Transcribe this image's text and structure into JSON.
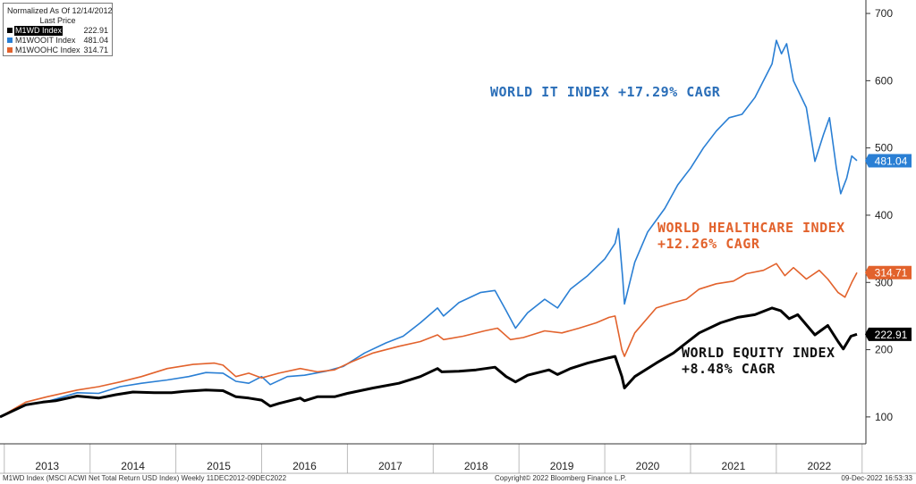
{
  "chart_data": {
    "type": "line",
    "x_range": [
      2012.95,
      2022.94
    ],
    "ylim": [
      60,
      720
    ],
    "y_ticks": [
      100,
      200,
      300,
      400,
      500,
      600,
      700
    ],
    "x_categories": [
      "2013",
      "2014",
      "2015",
      "2016",
      "2017",
      "2018",
      "2019",
      "2020",
      "2021",
      "2022"
    ],
    "legend": {
      "title": "Normalized As Of 12/14/2012",
      "subtitle": "Last Price",
      "placement": "top-left"
    },
    "series": [
      {
        "name": "M1WD Index",
        "last_value": "222.91",
        "color": "#000000",
        "points": [
          [
            2012.95,
            100
          ],
          [
            2013.25,
            118
          ],
          [
            2013.45,
            122
          ],
          [
            2013.6,
            124
          ],
          [
            2013.85,
            131
          ],
          [
            2014.1,
            128
          ],
          [
            2014.3,
            133
          ],
          [
            2014.5,
            137
          ],
          [
            2014.75,
            136
          ],
          [
            2014.95,
            136
          ],
          [
            2015.1,
            138
          ],
          [
            2015.35,
            140
          ],
          [
            2015.55,
            139
          ],
          [
            2015.7,
            130
          ],
          [
            2015.85,
            128
          ],
          [
            2016.0,
            125
          ],
          [
            2016.1,
            116
          ],
          [
            2016.2,
            120
          ],
          [
            2016.45,
            128
          ],
          [
            2016.5,
            124
          ],
          [
            2016.65,
            130
          ],
          [
            2016.85,
            130
          ],
          [
            2017.0,
            135
          ],
          [
            2017.3,
            143
          ],
          [
            2017.6,
            150
          ],
          [
            2017.85,
            160
          ],
          [
            2018.05,
            172
          ],
          [
            2018.1,
            167
          ],
          [
            2018.3,
            168
          ],
          [
            2018.5,
            170
          ],
          [
            2018.72,
            174
          ],
          [
            2018.85,
            160
          ],
          [
            2018.96,
            152
          ],
          [
            2019.1,
            162
          ],
          [
            2019.35,
            170
          ],
          [
            2019.45,
            163
          ],
          [
            2019.6,
            172
          ],
          [
            2019.8,
            180
          ],
          [
            2020.05,
            188
          ],
          [
            2020.12,
            190
          ],
          [
            2020.2,
            160
          ],
          [
            2020.23,
            143
          ],
          [
            2020.35,
            160
          ],
          [
            2020.6,
            180
          ],
          [
            2020.8,
            195
          ],
          [
            2020.95,
            210
          ],
          [
            2021.1,
            225
          ],
          [
            2021.35,
            240
          ],
          [
            2021.55,
            248
          ],
          [
            2021.75,
            252
          ],
          [
            2021.95,
            262
          ],
          [
            2022.05,
            258
          ],
          [
            2022.15,
            246
          ],
          [
            2022.25,
            252
          ],
          [
            2022.45,
            222
          ],
          [
            2022.6,
            236
          ],
          [
            2022.72,
            212
          ],
          [
            2022.78,
            201
          ],
          [
            2022.87,
            220
          ],
          [
            2022.94,
            222.91
          ]
        ]
      },
      {
        "name": "M1WOOIT Index",
        "last_value": "481.04",
        "color": "#2a7fd4",
        "points": [
          [
            2012.95,
            100
          ],
          [
            2013.25,
            117
          ],
          [
            2013.5,
            123
          ],
          [
            2013.85,
            136
          ],
          [
            2014.1,
            135
          ],
          [
            2014.35,
            145
          ],
          [
            2014.6,
            150
          ],
          [
            2014.9,
            155
          ],
          [
            2015.15,
            160
          ],
          [
            2015.35,
            166
          ],
          [
            2015.55,
            165
          ],
          [
            2015.7,
            153
          ],
          [
            2015.85,
            150
          ],
          [
            2016.0,
            160
          ],
          [
            2016.1,
            148
          ],
          [
            2016.3,
            160
          ],
          [
            2016.5,
            162
          ],
          [
            2016.75,
            168
          ],
          [
            2016.95,
            175
          ],
          [
            2017.2,
            195
          ],
          [
            2017.45,
            210
          ],
          [
            2017.65,
            220
          ],
          [
            2017.85,
            240
          ],
          [
            2018.05,
            262
          ],
          [
            2018.12,
            250
          ],
          [
            2018.3,
            270
          ],
          [
            2018.55,
            285
          ],
          [
            2018.72,
            288
          ],
          [
            2018.85,
            258
          ],
          [
            2018.96,
            232
          ],
          [
            2019.1,
            255
          ],
          [
            2019.3,
            275
          ],
          [
            2019.45,
            262
          ],
          [
            2019.6,
            290
          ],
          [
            2019.8,
            310
          ],
          [
            2020.0,
            335
          ],
          [
            2020.12,
            358
          ],
          [
            2020.16,
            380
          ],
          [
            2020.21,
            305
          ],
          [
            2020.23,
            268
          ],
          [
            2020.35,
            330
          ],
          [
            2020.5,
            375
          ],
          [
            2020.7,
            410
          ],
          [
            2020.85,
            445
          ],
          [
            2021.0,
            470
          ],
          [
            2021.15,
            500
          ],
          [
            2021.3,
            525
          ],
          [
            2021.45,
            545
          ],
          [
            2021.6,
            550
          ],
          [
            2021.75,
            575
          ],
          [
            2021.95,
            625
          ],
          [
            2022.0,
            660
          ],
          [
            2022.06,
            640
          ],
          [
            2022.12,
            655
          ],
          [
            2022.2,
            600
          ],
          [
            2022.35,
            560
          ],
          [
            2022.45,
            480
          ],
          [
            2022.55,
            520
          ],
          [
            2022.62,
            545
          ],
          [
            2022.7,
            470
          ],
          [
            2022.75,
            432
          ],
          [
            2022.82,
            455
          ],
          [
            2022.88,
            488
          ],
          [
            2022.94,
            481.04
          ]
        ]
      },
      {
        "name": "M1WOOHC Index",
        "last_value": "314.71",
        "color": "#e2622c",
        "points": [
          [
            2012.95,
            100
          ],
          [
            2013.25,
            122
          ],
          [
            2013.5,
            130
          ],
          [
            2013.85,
            140
          ],
          [
            2014.1,
            145
          ],
          [
            2014.35,
            152
          ],
          [
            2014.6,
            160
          ],
          [
            2014.9,
            172
          ],
          [
            2015.2,
            178
          ],
          [
            2015.45,
            180
          ],
          [
            2015.55,
            177
          ],
          [
            2015.7,
            160
          ],
          [
            2015.85,
            165
          ],
          [
            2016.0,
            158
          ],
          [
            2016.2,
            165
          ],
          [
            2016.45,
            172
          ],
          [
            2016.65,
            167
          ],
          [
            2016.85,
            170
          ],
          [
            2017.05,
            182
          ],
          [
            2017.3,
            195
          ],
          [
            2017.6,
            205
          ],
          [
            2017.85,
            212
          ],
          [
            2018.05,
            222
          ],
          [
            2018.12,
            215
          ],
          [
            2018.35,
            220
          ],
          [
            2018.6,
            228
          ],
          [
            2018.75,
            232
          ],
          [
            2018.9,
            215
          ],
          [
            2019.05,
            218
          ],
          [
            2019.3,
            228
          ],
          [
            2019.5,
            225
          ],
          [
            2019.7,
            232
          ],
          [
            2019.9,
            240
          ],
          [
            2020.05,
            248
          ],
          [
            2020.12,
            250
          ],
          [
            2020.2,
            200
          ],
          [
            2020.23,
            190
          ],
          [
            2020.35,
            225
          ],
          [
            2020.6,
            262
          ],
          [
            2020.8,
            270
          ],
          [
            2020.95,
            275
          ],
          [
            2021.1,
            290
          ],
          [
            2021.3,
            298
          ],
          [
            2021.5,
            302
          ],
          [
            2021.65,
            313
          ],
          [
            2021.85,
            318
          ],
          [
            2022.0,
            328
          ],
          [
            2022.1,
            310
          ],
          [
            2022.2,
            322
          ],
          [
            2022.35,
            305
          ],
          [
            2022.5,
            318
          ],
          [
            2022.6,
            305
          ],
          [
            2022.72,
            285
          ],
          [
            2022.8,
            278
          ],
          [
            2022.88,
            300
          ],
          [
            2022.94,
            314.71
          ]
        ]
      }
    ],
    "annotations": {
      "it": "WORLD IT INDEX +17.29% CAGR",
      "hc_line1": "WORLD HEALTHCARE INDEX",
      "hc_line2": "+12.26% CAGR",
      "eq_line1": "WORLD EQUITY INDEX",
      "eq_line2": "+8.48% CAGR"
    }
  },
  "footer": {
    "left": "M1WD Index (MSCI ACWI Net Total Return USD Index)  Weekly 11DEC2012-09DEC2022",
    "center": "Copyright© 2022 Bloomberg Finance L.P.",
    "right": "09-Dec-2022 16:53:33"
  }
}
